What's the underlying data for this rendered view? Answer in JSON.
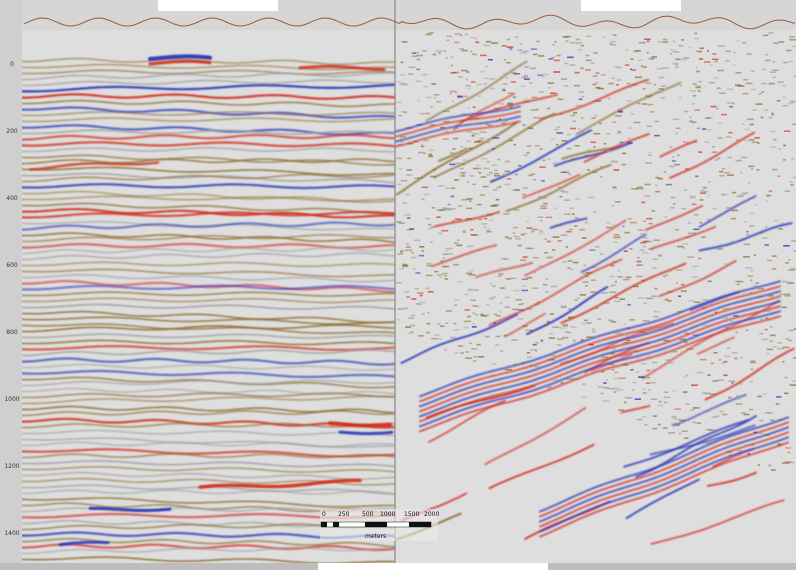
{
  "depth_ticks": [
    "0",
    "200",
    "400",
    "600",
    "800",
    "1000",
    "1200",
    "1400"
  ],
  "scale_bar": {
    "labels": [
      "0",
      "250",
      "500",
      "1000",
      "1500",
      "2000"
    ],
    "unit": "meters"
  },
  "colors": {
    "background": "#d9d9d9",
    "seafloor_line": "#9a5a3a",
    "positive_amplitude": "#d22a1a",
    "negative_amplitude": "#1f2fb5",
    "mid_amplitude": "#8a6a2a",
    "panel_divider": "#777777"
  }
}
